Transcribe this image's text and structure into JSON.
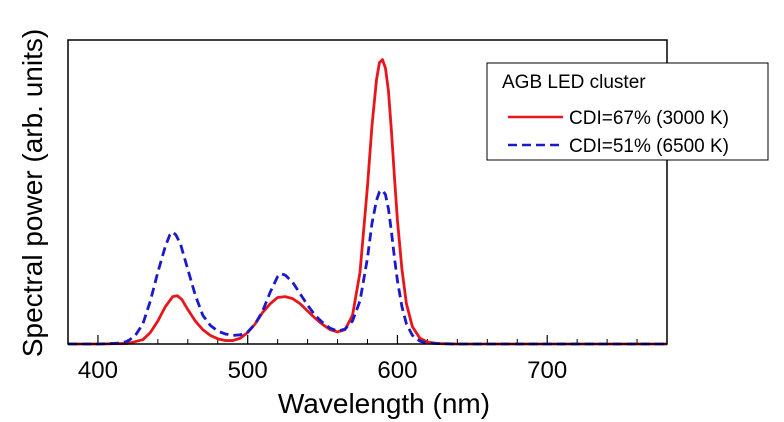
{
  "chart_data": {
    "type": "line",
    "title": "",
    "xlabel": "Wavelength (nm)",
    "ylabel": "Spectral power (arb. units)",
    "xlim": [
      380,
      780
    ],
    "ylim": [
      0,
      1.0
    ],
    "xticks": [
      400,
      500,
      600,
      700
    ],
    "xtick_labels": [
      "400",
      "500",
      "600",
      "700"
    ],
    "minor_xtick_step": 20,
    "grid": false,
    "legend": {
      "title": "AGB LED cluster",
      "position": "top-right"
    },
    "series": [
      {
        "name": "CDI=67% (3000 K)",
        "color": "#e8161b",
        "dash": "solid",
        "x": [
          380,
          400,
          420,
          430,
          435,
          440,
          445,
          450,
          453,
          456,
          460,
          465,
          470,
          475,
          480,
          485,
          490,
          495,
          500,
          505,
          510,
          515,
          520,
          525,
          530,
          535,
          540,
          545,
          550,
          555,
          560,
          565,
          570,
          575,
          580,
          583,
          586,
          588,
          590,
          592,
          594,
          596,
          598,
          600,
          603,
          606,
          610,
          615,
          620,
          625,
          630,
          640,
          660,
          700,
          780
        ],
        "y": [
          0,
          0,
          0.002,
          0.015,
          0.04,
          0.08,
          0.13,
          0.165,
          0.168,
          0.155,
          0.12,
          0.08,
          0.05,
          0.03,
          0.018,
          0.012,
          0.012,
          0.02,
          0.04,
          0.07,
          0.11,
          0.14,
          0.162,
          0.165,
          0.158,
          0.14,
          0.115,
          0.09,
          0.068,
          0.05,
          0.042,
          0.05,
          0.1,
          0.25,
          0.55,
          0.76,
          0.92,
          0.98,
          0.99,
          0.96,
          0.88,
          0.74,
          0.58,
          0.43,
          0.26,
          0.14,
          0.06,
          0.02,
          0.007,
          0.003,
          0.001,
          0,
          0,
          0,
          0
        ]
      },
      {
        "name": "CDI=51% (6500 K)",
        "color": "#1a1acc",
        "dash": "dashed",
        "x": [
          380,
          400,
          415,
          420,
          425,
          430,
          435,
          440,
          445,
          448,
          450,
          452,
          455,
          460,
          465,
          470,
          475,
          480,
          485,
          490,
          495,
          500,
          505,
          510,
          515,
          520,
          522,
          525,
          530,
          535,
          540,
          545,
          550,
          555,
          560,
          565,
          570,
          575,
          580,
          583,
          586,
          588,
          590,
          592,
          594,
          596,
          598,
          600,
          603,
          606,
          610,
          615,
          620,
          630,
          640,
          660,
          700,
          780
        ],
        "y": [
          0,
          0,
          0.003,
          0.01,
          0.03,
          0.07,
          0.15,
          0.25,
          0.34,
          0.38,
          0.39,
          0.38,
          0.35,
          0.26,
          0.17,
          0.1,
          0.065,
          0.045,
          0.035,
          0.03,
          0.032,
          0.042,
          0.07,
          0.115,
          0.18,
          0.235,
          0.245,
          0.24,
          0.215,
          0.175,
          0.135,
          0.1,
          0.075,
          0.055,
          0.045,
          0.052,
          0.08,
          0.15,
          0.3,
          0.42,
          0.5,
          0.53,
          0.535,
          0.52,
          0.47,
          0.39,
          0.3,
          0.22,
          0.13,
          0.07,
          0.03,
          0.01,
          0.003,
          0.001,
          0,
          0,
          0,
          0
        ]
      }
    ]
  }
}
